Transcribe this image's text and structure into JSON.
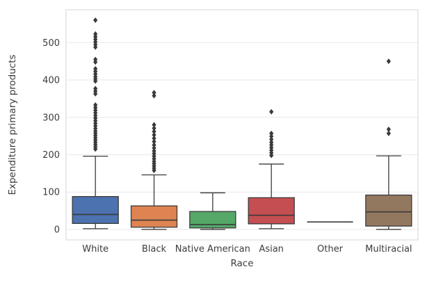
{
  "figure": {
    "background": "#ffffff"
  },
  "chart_data": {
    "type": "box",
    "title": "",
    "xlabel": "Race",
    "ylabel": "Expenditure primary products",
    "ylim": [
      -28,
      588
    ],
    "yticks": [
      0,
      100,
      200,
      300,
      400,
      500
    ],
    "grid": "horizontal",
    "legend": "none",
    "categories": [
      "White",
      "Black",
      "Native American",
      "Asian",
      "Other",
      "Multiracial"
    ],
    "boxes": [
      {
        "category": "White",
        "color": "#4c72b0",
        "whisker_low": 2,
        "q1": 16,
        "median": 40,
        "q3": 88,
        "whisker_high": 196,
        "outliers": [
          215,
          221,
          227,
          233,
          239,
          245,
          251,
          257,
          263,
          270,
          277,
          284,
          291,
          298,
          305,
          312,
          319,
          326,
          333,
          363,
          370,
          377,
          397,
          403,
          409,
          416,
          423,
          430,
          448,
          455,
          488,
          495,
          502,
          509,
          516,
          523,
          560
        ]
      },
      {
        "category": "Black",
        "color": "#dd8452",
        "whisker_low": 0,
        "q1": 6,
        "median": 25,
        "q3": 63,
        "whisker_high": 146,
        "outliers": [
          158,
          164,
          170,
          176,
          182,
          189,
          196,
          203,
          210,
          218,
          226,
          235,
          244,
          253,
          262,
          271,
          280,
          358,
          366
        ]
      },
      {
        "category": "Native American",
        "color": "#55a868",
        "whisker_low": 0,
        "q1": 4,
        "median": 13,
        "q3": 48,
        "whisker_high": 98,
        "outliers": []
      },
      {
        "category": "Asian",
        "color": "#c44e52",
        "whisker_low": 2,
        "q1": 15,
        "median": 38,
        "q3": 85,
        "whisker_high": 175,
        "outliers": [
          198,
          205,
          212,
          219,
          226,
          233,
          241,
          249,
          257,
          315
        ]
      },
      {
        "category": "Other",
        "color": "#8172b3",
        "whisker_low": 20,
        "q1": 20,
        "median": 20,
        "q3": 20,
        "whisker_high": 20,
        "outliers": []
      },
      {
        "category": "Multiracial",
        "color": "#937860",
        "whisker_low": 0,
        "q1": 9,
        "median": 47,
        "q3": 92,
        "whisker_high": 197,
        "outliers": [
          257,
          268,
          450
        ]
      }
    ],
    "style": {
      "edge_color": "#3a3a3a",
      "grid_color": "#e8e8e8",
      "border_color": "#d4d4d4",
      "text_color": "#3b3b3b",
      "flier_marker": "diamond",
      "tick_font_size": 13,
      "label_font_size": 13.5
    }
  }
}
